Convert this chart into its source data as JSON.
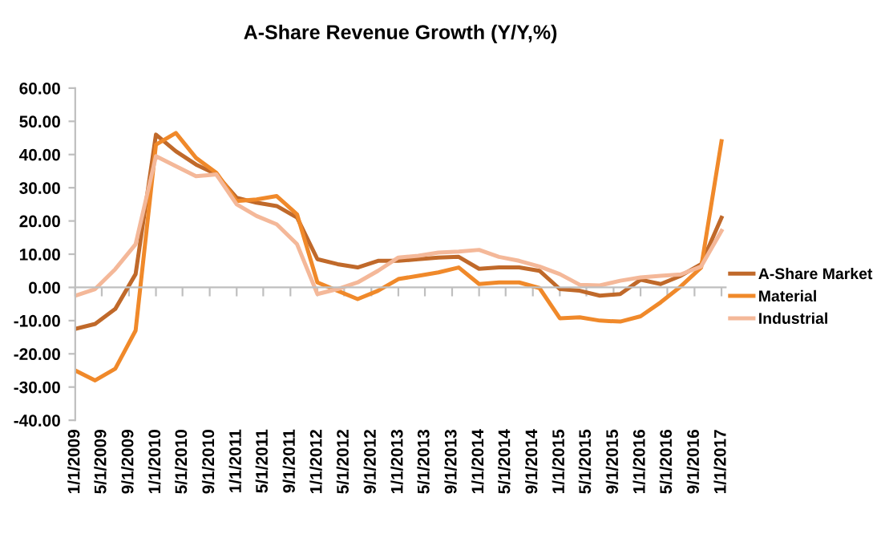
{
  "chart_data": {
    "type": "line",
    "title": "A-Share Revenue Growth (Y/Y,%)",
    "x": [
      "2009-01-01",
      "2009-04-01",
      "2009-07-01",
      "2009-10-01",
      "2010-01-01",
      "2010-04-01",
      "2010-07-01",
      "2010-10-01",
      "2011-01-01",
      "2011-04-01",
      "2011-07-01",
      "2011-10-01",
      "2012-01-01",
      "2012-04-01",
      "2012-07-01",
      "2012-10-01",
      "2013-01-01",
      "2013-04-01",
      "2013-07-01",
      "2013-10-01",
      "2014-01-01",
      "2014-04-01",
      "2014-07-01",
      "2014-10-01",
      "2015-01-01",
      "2015-04-01",
      "2015-07-01",
      "2015-10-01",
      "2016-01-01",
      "2016-04-01",
      "2016-07-01",
      "2016-10-01",
      "2017-01-01"
    ],
    "series": [
      {
        "name": "A-Share Market",
        "color": "#c0692a",
        "values": [
          -12.5,
          -11,
          -6.5,
          4,
          46,
          41,
          37,
          34,
          27,
          25.5,
          24.5,
          21,
          8.5,
          7,
          6,
          8,
          8,
          8.5,
          9,
          9.2,
          5.6,
          6,
          6,
          5,
          -0.5,
          -1,
          -2.5,
          -2,
          2.3,
          1,
          3.5,
          7,
          21
        ]
      },
      {
        "name": "Material",
        "color": "#f0892a",
        "values": [
          -25,
          -28,
          -24.5,
          -13,
          43,
          46.5,
          39,
          34.5,
          26,
          26.5,
          27.5,
          22,
          1.5,
          -1,
          -3.5,
          -1,
          2.5,
          3.5,
          4.5,
          6,
          1,
          1.5,
          1.5,
          -0.2,
          -9.3,
          -9,
          -10,
          -10.3,
          -8.7,
          -4.5,
          0.3,
          6,
          44
        ]
      },
      {
        "name": "Industrial",
        "color": "#f4b899",
        "values": [
          -2.5,
          -0.5,
          5.5,
          13,
          39.5,
          36.5,
          33.5,
          34,
          25,
          21.5,
          19,
          13,
          -2,
          -0.5,
          1.5,
          5,
          9,
          9.5,
          10.5,
          10.8,
          11.3,
          9.2,
          8,
          6.3,
          4,
          0.8,
          0.6,
          2,
          3,
          3.5,
          3.9,
          6.3,
          17
        ]
      }
    ],
    "xlim": [
      "2009-01-01",
      "2017-01-20"
    ],
    "xticks": [
      {
        "value": "2009-01-01",
        "label": "1/1/2009"
      },
      {
        "value": "2009-05-01",
        "label": "5/1/2009"
      },
      {
        "value": "2009-09-01",
        "label": "9/1/2009"
      },
      {
        "value": "2010-01-01",
        "label": "1/1/2010"
      },
      {
        "value": "2010-05-01",
        "label": "5/1/2010"
      },
      {
        "value": "2010-09-01",
        "label": "9/1/2010"
      },
      {
        "value": "2011-01-01",
        "label": "1/1/2011"
      },
      {
        "value": "2011-05-01",
        "label": "5/1/2011"
      },
      {
        "value": "2011-09-01",
        "label": "9/1/2011"
      },
      {
        "value": "2012-01-01",
        "label": "1/1/2012"
      },
      {
        "value": "2012-05-01",
        "label": "5/1/2012"
      },
      {
        "value": "2012-09-01",
        "label": "9/1/2012"
      },
      {
        "value": "2013-01-01",
        "label": "1/1/2013"
      },
      {
        "value": "2013-05-01",
        "label": "5/1/2013"
      },
      {
        "value": "2013-09-01",
        "label": "9/1/2013"
      },
      {
        "value": "2014-01-01",
        "label": "1/1/2014"
      },
      {
        "value": "2014-05-01",
        "label": "5/1/2014"
      },
      {
        "value": "2014-09-01",
        "label": "9/1/2014"
      },
      {
        "value": "2015-01-01",
        "label": "1/1/2015"
      },
      {
        "value": "2015-05-01",
        "label": "5/1/2015"
      },
      {
        "value": "2015-09-01",
        "label": "9/1/2015"
      },
      {
        "value": "2016-01-01",
        "label": "1/1/2016"
      },
      {
        "value": "2016-05-01",
        "label": "5/1/2016"
      },
      {
        "value": "2016-09-01",
        "label": "9/1/2016"
      },
      {
        "value": "2017-01-01",
        "label": "1/1/2017"
      }
    ],
    "ylim": [
      -40,
      60
    ],
    "yticks": [
      {
        "value": -40,
        "label": "-40.00"
      },
      {
        "value": -30,
        "label": "-30.00"
      },
      {
        "value": -20,
        "label": "-20.00"
      },
      {
        "value": -10,
        "label": "-10.00"
      },
      {
        "value": 0,
        "label": "0.00"
      },
      {
        "value": 10,
        "label": "10.00"
      },
      {
        "value": 20,
        "label": "20.00"
      },
      {
        "value": 30,
        "label": "30.00"
      },
      {
        "value": 40,
        "label": "40.00"
      },
      {
        "value": 50,
        "label": "50.00"
      },
      {
        "value": 60,
        "label": "60.00"
      }
    ],
    "legend": "right",
    "marker": "none",
    "line_style": "solid"
  }
}
